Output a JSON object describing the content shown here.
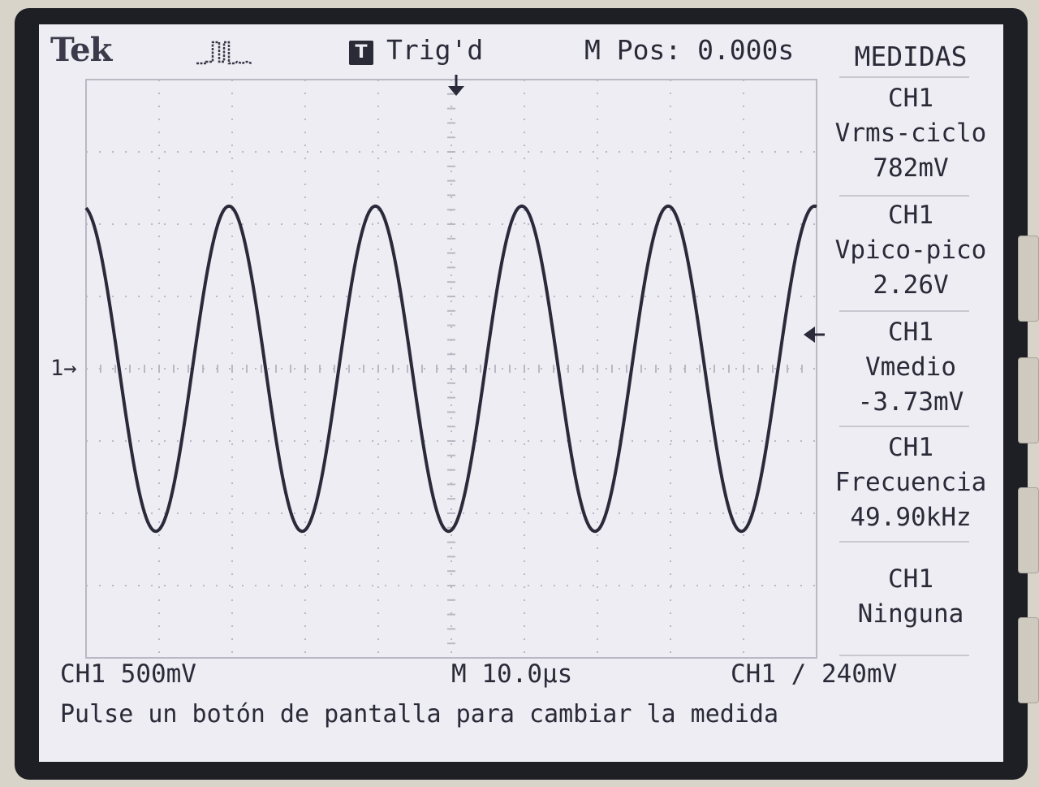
{
  "header": {
    "brand": "Tek",
    "trigger_badge": "T",
    "trigger_status": "Trig'd",
    "position": "M Pos: 0.000s"
  },
  "menu": {
    "title": "MEDIDAS",
    "measurements": [
      {
        "channel": "CH1",
        "name": "Vrms-ciclo",
        "value": "782mV"
      },
      {
        "channel": "CH1",
        "name": "Vpico-pico",
        "value": "2.26V"
      },
      {
        "channel": "CH1",
        "name": "Vmedio",
        "value": "-3.73mV"
      },
      {
        "channel": "CH1",
        "name": "Frecuencia",
        "value": "49.90kHz"
      },
      {
        "channel": "CH1",
        "name": "Ninguna",
        "value": ""
      }
    ]
  },
  "waveform": {
    "channel_marker": "1",
    "shape": "sine",
    "cycles_on_screen": 4.99,
    "peak_to_peak_divisions": 4.5,
    "offset_divisions": 0
  },
  "status_bar": {
    "ch1_scale": "CH1  500mV",
    "timebase": "M 10.0µs",
    "trigger": "CH1 ∕ 240mV"
  },
  "message": "Pulse un botón de pantalla para cambiar la medida",
  "colors": {
    "screen": "#eeedf3",
    "trace": "#2a2a3a",
    "bezel": "#1e1f24",
    "graticule": "#b9b8c4"
  }
}
